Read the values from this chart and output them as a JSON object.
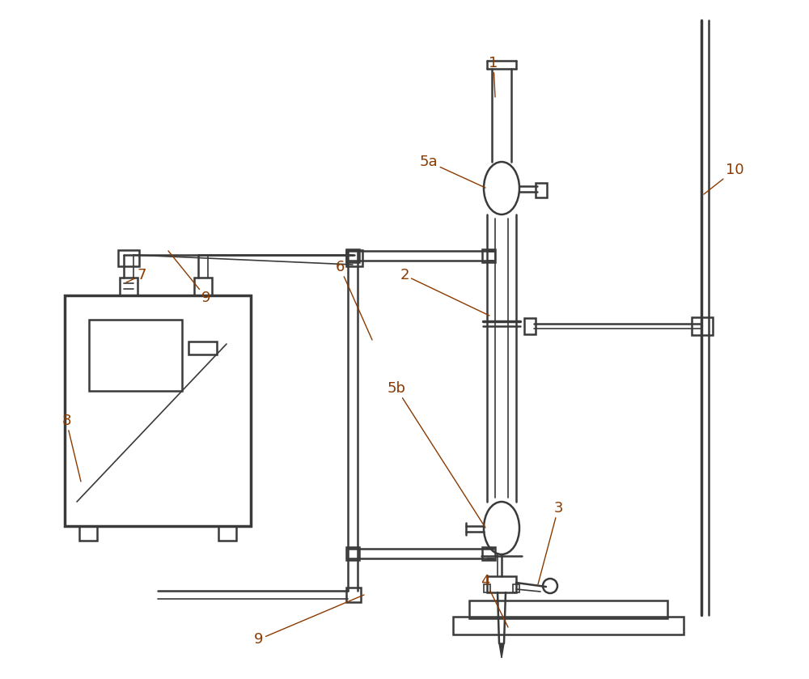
{
  "bg_color": "#ffffff",
  "line_color": "#3a3a3a",
  "label_color": "#8B3A00",
  "figsize": [
    10.0,
    8.39
  ],
  "dpi": 100
}
